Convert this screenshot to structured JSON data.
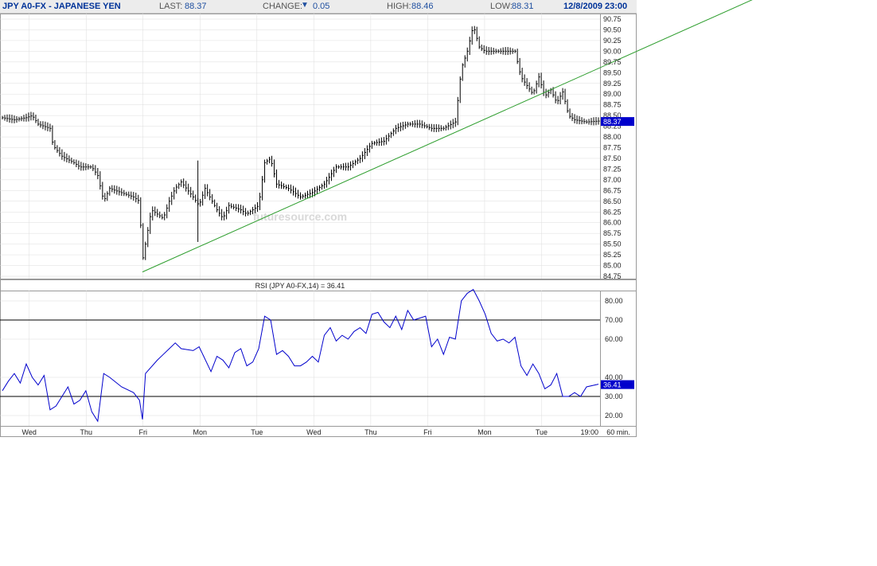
{
  "header": {
    "title": "JPY A0-FX - JAPANESE YEN",
    "last_label": "LAST:",
    "last_value": "88.37",
    "change_label": "CHANGE:",
    "change_value": "0.05",
    "high_label": "HIGH:",
    "high_value": "88.46",
    "low_label": "LOW:",
    "low_value": "88.31",
    "datetime": "12/8/2009 23:00"
  },
  "watermark": "futuresource.com",
  "colors": {
    "title": "#003399",
    "value": "#1f4fa0",
    "rsi_line": "#0000cc",
    "trendline": "#2e9e2e",
    "price": "#000000",
    "price_badge": "#0000cc",
    "grid": "#dddddd"
  },
  "chart_data": [
    {
      "type": "candlestick",
      "title": "JPY A0-FX - JAPANESE YEN",
      "timeframe": "60 min.",
      "ylim": [
        84.75,
        90.75
      ],
      "y_ticks": [
        "90.75",
        "90.50",
        "90.25",
        "90.00",
        "89.75",
        "89.50",
        "89.25",
        "89.00",
        "88.75",
        "88.50",
        "88.25",
        "88.00",
        "87.75",
        "87.50",
        "87.25",
        "87.00",
        "86.75",
        "86.50",
        "86.25",
        "86.00",
        "85.75",
        "85.50",
        "85.25",
        "85.00",
        "84.75"
      ],
      "x_labels": [
        "Wed",
        "Thu",
        "Fri",
        "Mon",
        "Tue",
        "Wed",
        "Thu",
        "Fri",
        "Mon",
        "Tue",
        "19:00"
      ],
      "last_price_label": "88.37",
      "close_path": [
        [
          0,
          88.45
        ],
        [
          0.02,
          88.4
        ],
        [
          0.04,
          88.45
        ],
        [
          0.05,
          88.5
        ],
        [
          0.06,
          88.3
        ],
        [
          0.07,
          88.25
        ],
        [
          0.08,
          88.2
        ],
        [
          0.085,
          87.8
        ],
        [
          0.1,
          87.55
        ],
        [
          0.12,
          87.4
        ],
        [
          0.13,
          87.3
        ],
        [
          0.15,
          87.3
        ],
        [
          0.16,
          87.1
        ],
        [
          0.17,
          86.5
        ],
        [
          0.18,
          86.8
        ],
        [
          0.2,
          86.7
        ],
        [
          0.22,
          86.6
        ],
        [
          0.23,
          86.5
        ],
        [
          0.235,
          85.1
        ],
        [
          0.25,
          86.3
        ],
        [
          0.27,
          86.1
        ],
        [
          0.28,
          86.5
        ],
        [
          0.29,
          86.8
        ],
        [
          0.3,
          86.95
        ],
        [
          0.32,
          86.6
        ],
        [
          0.33,
          86.4
        ],
        [
          0.34,
          86.8
        ],
        [
          0.36,
          86.3
        ],
        [
          0.37,
          86.1
        ],
        [
          0.38,
          86.4
        ],
        [
          0.4,
          86.3
        ],
        [
          0.41,
          86.2
        ],
        [
          0.43,
          86.4
        ],
        [
          0.44,
          87.4
        ],
        [
          0.45,
          87.5
        ],
        [
          0.46,
          86.9
        ],
        [
          0.48,
          86.8
        ],
        [
          0.5,
          86.6
        ],
        [
          0.52,
          86.7
        ],
        [
          0.54,
          86.9
        ],
        [
          0.56,
          87.3
        ],
        [
          0.58,
          87.3
        ],
        [
          0.6,
          87.5
        ],
        [
          0.62,
          87.85
        ],
        [
          0.64,
          87.9
        ],
        [
          0.66,
          88.2
        ],
        [
          0.68,
          88.3
        ],
        [
          0.7,
          88.3
        ],
        [
          0.72,
          88.2
        ],
        [
          0.74,
          88.2
        ],
        [
          0.76,
          88.35
        ],
        [
          0.77,
          89.6
        ],
        [
          0.78,
          90.0
        ],
        [
          0.79,
          90.6
        ],
        [
          0.8,
          90.1
        ],
        [
          0.81,
          90.0
        ],
        [
          0.82,
          90.0
        ],
        [
          0.84,
          90.0
        ],
        [
          0.86,
          90.0
        ],
        [
          0.87,
          89.4
        ],
        [
          0.88,
          89.2
        ],
        [
          0.89,
          89.0
        ],
        [
          0.9,
          89.4
        ],
        [
          0.91,
          88.95
        ],
        [
          0.92,
          89.1
        ],
        [
          0.93,
          88.8
        ],
        [
          0.94,
          89.05
        ],
        [
          0.95,
          88.5
        ],
        [
          0.96,
          88.4
        ],
        [
          0.98,
          88.35
        ],
        [
          1.0,
          88.37
        ]
      ],
      "trendline": [
        [
          0.235,
          84.85
        ],
        [
          1.0,
          89.6
        ]
      ]
    },
    {
      "type": "line",
      "title": "RSI (JPY A0-FX,14) = 36.41",
      "ylim": [
        15,
        85
      ],
      "y_ticks": [
        "80.00",
        "70.00",
        "60.00",
        "40.00",
        "30.00",
        "20.00"
      ],
      "reference_lines": [
        70,
        30
      ],
      "last_value_label": "36.41",
      "series": [
        {
          "name": "RSI (JPY A0-FX,14)",
          "points": [
            [
              0,
              33
            ],
            [
              0.01,
              38
            ],
            [
              0.02,
              42
            ],
            [
              0.03,
              37
            ],
            [
              0.04,
              47
            ],
            [
              0.05,
              40
            ],
            [
              0.06,
              36
            ],
            [
              0.07,
              41
            ],
            [
              0.08,
              23
            ],
            [
              0.09,
              25
            ],
            [
              0.1,
              30
            ],
            [
              0.11,
              35
            ],
            [
              0.12,
              26
            ],
            [
              0.13,
              28
            ],
            [
              0.14,
              33
            ],
            [
              0.15,
              22
            ],
            [
              0.16,
              17
            ],
            [
              0.17,
              42
            ],
            [
              0.18,
              40
            ],
            [
              0.2,
              35
            ],
            [
              0.22,
              32
            ],
            [
              0.23,
              28
            ],
            [
              0.235,
              18
            ],
            [
              0.24,
              42
            ],
            [
              0.26,
              49
            ],
            [
              0.27,
              52
            ],
            [
              0.28,
              55
            ],
            [
              0.29,
              58
            ],
            [
              0.3,
              55
            ],
            [
              0.32,
              54
            ],
            [
              0.33,
              56
            ],
            [
              0.35,
              43
            ],
            [
              0.36,
              51
            ],
            [
              0.37,
              49
            ],
            [
              0.38,
              45
            ],
            [
              0.39,
              53
            ],
            [
              0.4,
              55
            ],
            [
              0.41,
              46
            ],
            [
              0.42,
              48
            ],
            [
              0.43,
              55
            ],
            [
              0.44,
              72
            ],
            [
              0.45,
              70
            ],
            [
              0.46,
              52
            ],
            [
              0.47,
              54
            ],
            [
              0.48,
              51
            ],
            [
              0.49,
              46
            ],
            [
              0.5,
              46
            ],
            [
              0.51,
              48
            ],
            [
              0.52,
              51
            ],
            [
              0.53,
              48
            ],
            [
              0.54,
              62
            ],
            [
              0.55,
              66
            ],
            [
              0.56,
              59
            ],
            [
              0.57,
              62
            ],
            [
              0.58,
              60
            ],
            [
              0.59,
              64
            ],
            [
              0.6,
              66
            ],
            [
              0.61,
              63
            ],
            [
              0.62,
              73
            ],
            [
              0.63,
              74
            ],
            [
              0.64,
              69
            ],
            [
              0.65,
              66
            ],
            [
              0.66,
              72
            ],
            [
              0.67,
              65
            ],
            [
              0.68,
              75
            ],
            [
              0.69,
              70
            ],
            [
              0.7,
              71
            ],
            [
              0.71,
              72
            ],
            [
              0.72,
              56
            ],
            [
              0.73,
              60
            ],
            [
              0.74,
              52
            ],
            [
              0.75,
              61
            ],
            [
              0.76,
              60
            ],
            [
              0.77,
              80
            ],
            [
              0.78,
              84
            ],
            [
              0.79,
              86
            ],
            [
              0.8,
              80
            ],
            [
              0.81,
              73
            ],
            [
              0.82,
              63
            ],
            [
              0.83,
              59
            ],
            [
              0.84,
              60
            ],
            [
              0.85,
              58
            ],
            [
              0.86,
              61
            ],
            [
              0.87,
              46
            ],
            [
              0.88,
              41
            ],
            [
              0.89,
              47
            ],
            [
              0.9,
              42
            ],
            [
              0.91,
              34
            ],
            [
              0.92,
              36
            ],
            [
              0.93,
              42
            ],
            [
              0.94,
              30
            ],
            [
              0.95,
              30
            ],
            [
              0.96,
              32
            ],
            [
              0.97,
              30
            ],
            [
              0.98,
              35
            ],
            [
              1.0,
              36.41
            ]
          ]
        }
      ]
    }
  ]
}
